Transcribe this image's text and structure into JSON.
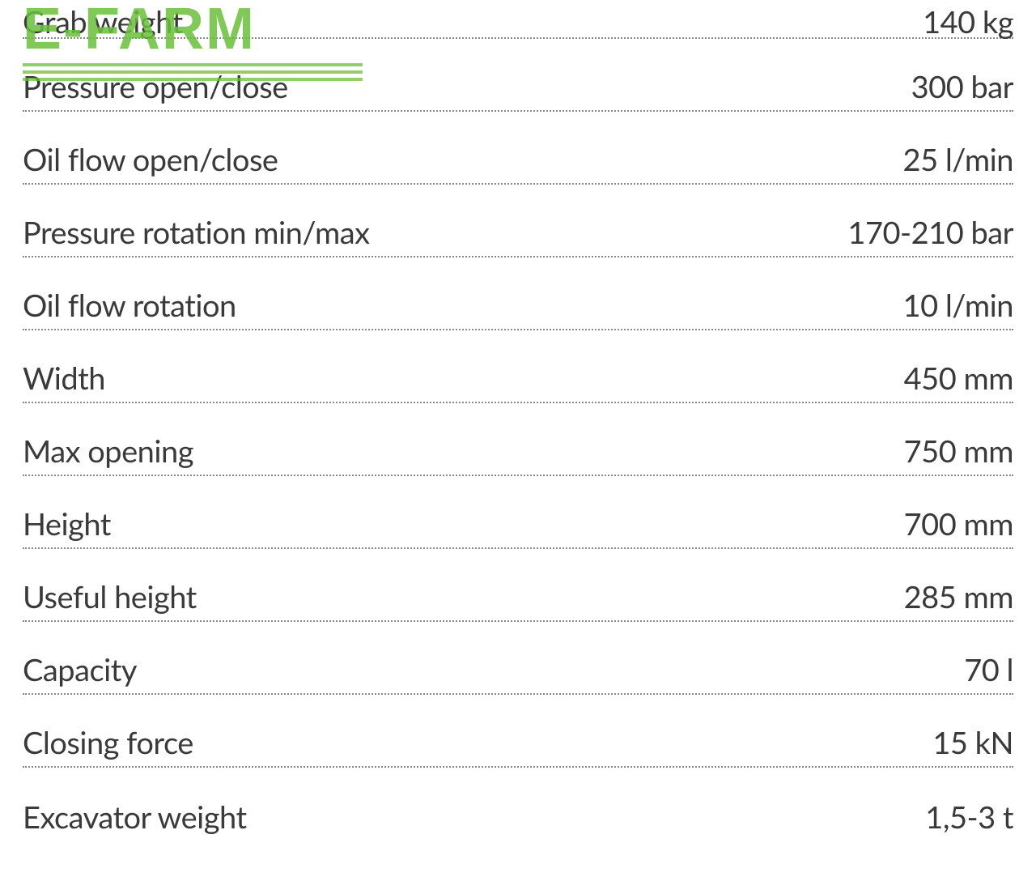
{
  "watermark": {
    "text_e": "E",
    "text_dash": "-",
    "text_farm": "FARM",
    "brand_color": "#6bbf3a"
  },
  "spec_table": {
    "type": "table",
    "text_color": "#3a3a3a",
    "border_color": "#888888",
    "border_style": "dotted",
    "background_color": "#ffffff",
    "label_fontsize": 38,
    "value_fontsize": 38,
    "rows": [
      {
        "label": "Grab weight",
        "value": "140 kg"
      },
      {
        "label": "Pressure open/close",
        "value": "300 bar"
      },
      {
        "label": "Oil flow open/close",
        "value": "25 l/min"
      },
      {
        "label": "Pressure rotation min/max",
        "value": "170-210 bar"
      },
      {
        "label": "Oil flow rotation",
        "value": "10 l/min"
      },
      {
        "label": "Width",
        "value": "450 mm"
      },
      {
        "label": "Max opening",
        "value": "750 mm"
      },
      {
        "label": "Height",
        "value": "700 mm"
      },
      {
        "label": "Useful height",
        "value": "285 mm"
      },
      {
        "label": "Capacity",
        "value": "70 l"
      },
      {
        "label": "Closing force",
        "value": "15 kN"
      },
      {
        "label": "Excavator weight",
        "value": "1,5-3 t"
      }
    ]
  }
}
